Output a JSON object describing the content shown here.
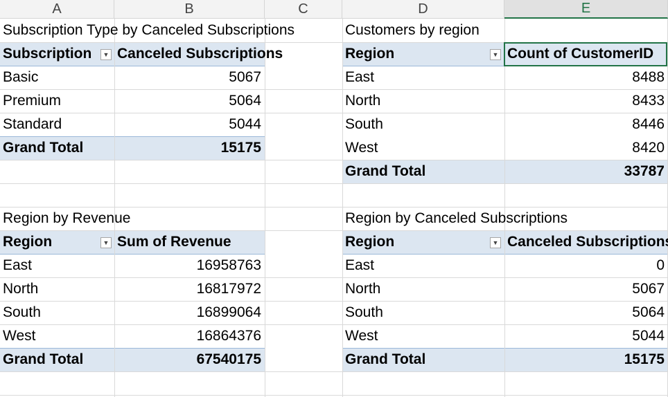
{
  "columns": [
    "A",
    "B",
    "C",
    "D",
    "E"
  ],
  "pivot1": {
    "title": "Subscription Type by Canceled Subscriptions",
    "h1": "Subscription",
    "h2": "Canceled Subscriptions",
    "rows": [
      {
        "label": "Basic",
        "value": "5067"
      },
      {
        "label": "Premium",
        "value": "5064"
      },
      {
        "label": "Standard",
        "value": "5044"
      }
    ],
    "total_label": "Grand Total",
    "total_value": "15175"
  },
  "pivot2": {
    "title": "Customers by region",
    "h1": "Region",
    "h2": "Count of CustomerID",
    "rows": [
      {
        "label": "East",
        "value": "8488"
      },
      {
        "label": "North",
        "value": "8433"
      },
      {
        "label": "South",
        "value": "8446"
      },
      {
        "label": "West",
        "value": "8420"
      }
    ],
    "total_label": "Grand Total",
    "total_value": "33787"
  },
  "pivot3": {
    "title": "Region by Revenue",
    "h1": "Region",
    "h2": "Sum of Revenue",
    "rows": [
      {
        "label": "East",
        "value": "16958763"
      },
      {
        "label": "North",
        "value": "16817972"
      },
      {
        "label": "South",
        "value": "16899064"
      },
      {
        "label": "West",
        "value": "16864376"
      }
    ],
    "total_label": "Grand Total",
    "total_value": "67540175"
  },
  "pivot4": {
    "title": "Region by Canceled Subscriptions",
    "h1": "Region",
    "h2": "Canceled Subscriptions",
    "rows": [
      {
        "label": "East",
        "value": "0"
      },
      {
        "label": "North",
        "value": "5067"
      },
      {
        "label": "South",
        "value": "5064"
      },
      {
        "label": "West",
        "value": "5044"
      }
    ],
    "total_label": "Grand Total",
    "total_value": "15175"
  }
}
